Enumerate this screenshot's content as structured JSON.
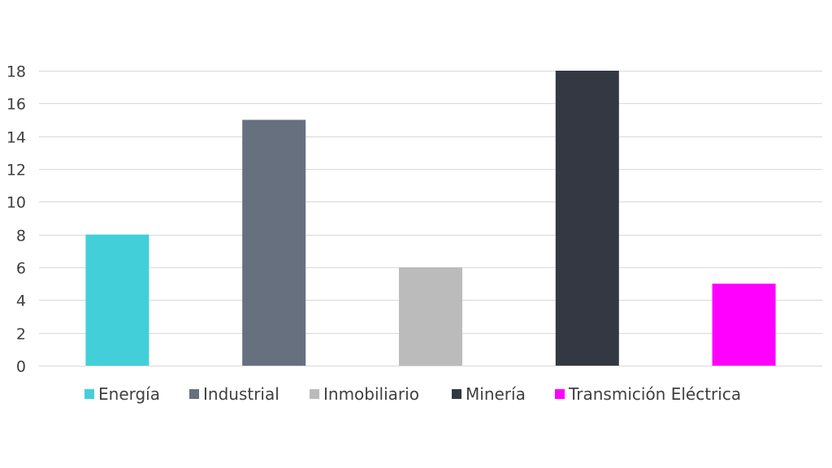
{
  "chart_data": {
    "type": "bar",
    "title": "",
    "xlabel": "",
    "ylabel": "",
    "categories": [
      "Energía",
      "Industrial",
      "Inmobiliario",
      "Minería",
      "Transmición Eléctrica"
    ],
    "values": [
      8,
      15,
      6,
      18,
      5
    ],
    "colors": [
      "#43cfd9",
      "#66707f",
      "#bbbbbb",
      "#333843",
      "#ff00ff"
    ],
    "ylim": [
      0,
      18
    ],
    "yticks": [
      0,
      2,
      4,
      6,
      8,
      10,
      12,
      14,
      16,
      18
    ],
    "grid": true,
    "legend": "bottom"
  }
}
